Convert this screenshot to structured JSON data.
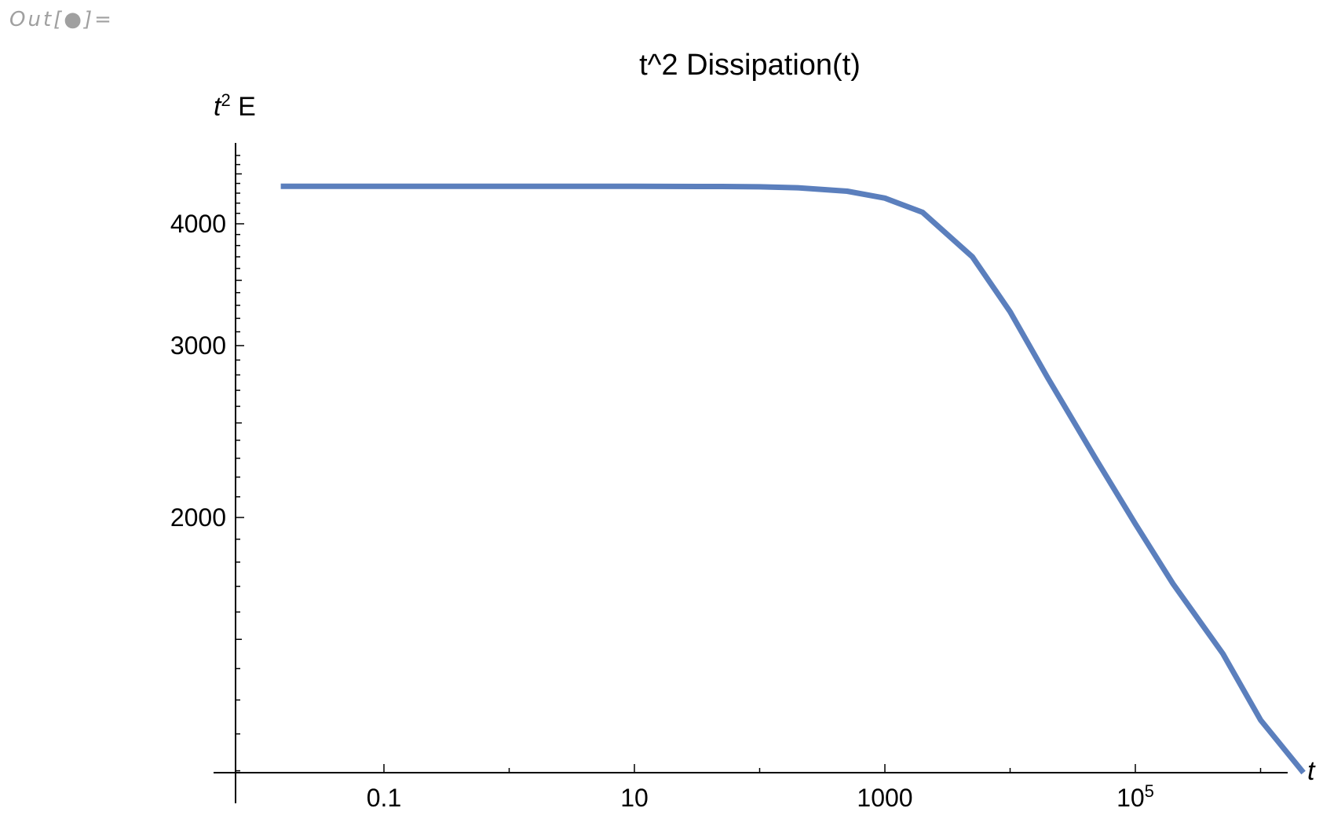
{
  "output_label": "Out[●]=",
  "chart_data": {
    "type": "line",
    "title": "t^2 Dissipation(t)",
    "xlabel": "t",
    "ylabel": "t",
    "ylabel_sup": "2",
    "ylabel_suffix": " E",
    "xscale": "log",
    "yscale": "log",
    "xlim": [
      0.01,
      5000000
    ],
    "ylim": [
      1000,
      4800
    ],
    "x_ticks": [
      {
        "value": 0.1,
        "label": "0.1"
      },
      {
        "value": 10,
        "label": "10"
      },
      {
        "value": 1000,
        "label": "1000"
      },
      {
        "value": 100000,
        "label": "10",
        "sup": "5"
      }
    ],
    "y_ticks": [
      {
        "value": 2000,
        "label": "2000"
      },
      {
        "value": 3000,
        "label": "3000"
      },
      {
        "value": 4000,
        "label": "4000"
      }
    ],
    "grid": false,
    "series": [
      {
        "color": "#5b7fbd",
        "x": [
          0.015,
          0.1,
          1,
          10,
          50,
          100,
          200,
          500,
          1000,
          2000,
          5000,
          10000,
          20000,
          50000,
          100000,
          200000,
          500000,
          1000000,
          2200000
        ],
        "y": [
          4370,
          4370,
          4370,
          4370,
          4368,
          4365,
          4355,
          4320,
          4250,
          4110,
          3700,
          3250,
          2780,
          2280,
          1970,
          1710,
          1450,
          1240,
          1000
        ]
      }
    ]
  }
}
